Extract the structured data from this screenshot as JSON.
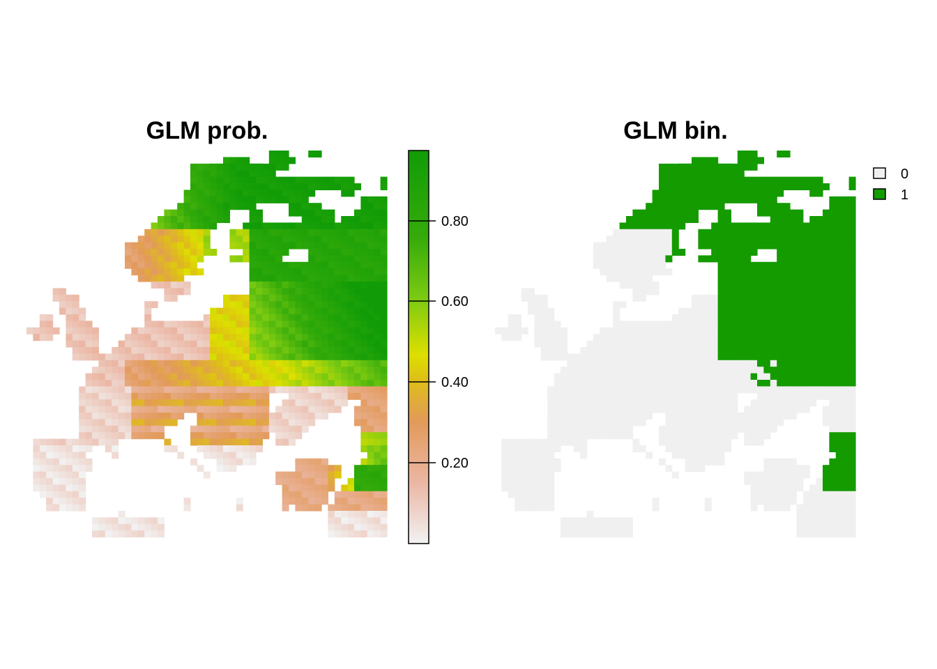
{
  "maps": [
    {
      "title": "GLM prob.",
      "type": "raster",
      "legend": {
        "kind": "continuous",
        "ticks": [
          "0.20",
          "0.40",
          "0.60",
          "0.80"
        ],
        "range": [
          0,
          0.97
        ],
        "colors": [
          "#f2f2f2",
          "#ebb8a6",
          "#e29a5a",
          "#dec015",
          "#dddf00",
          "#7ecb12",
          "#35ab0a",
          "#119c07"
        ]
      }
    },
    {
      "title": "GLM bin.",
      "type": "raster",
      "legend": {
        "kind": "categorical",
        "entries": [
          {
            "label": "0",
            "color": "#f0f0f0"
          },
          {
            "label": "1",
            "color": "#149b00"
          }
        ]
      }
    }
  ]
}
